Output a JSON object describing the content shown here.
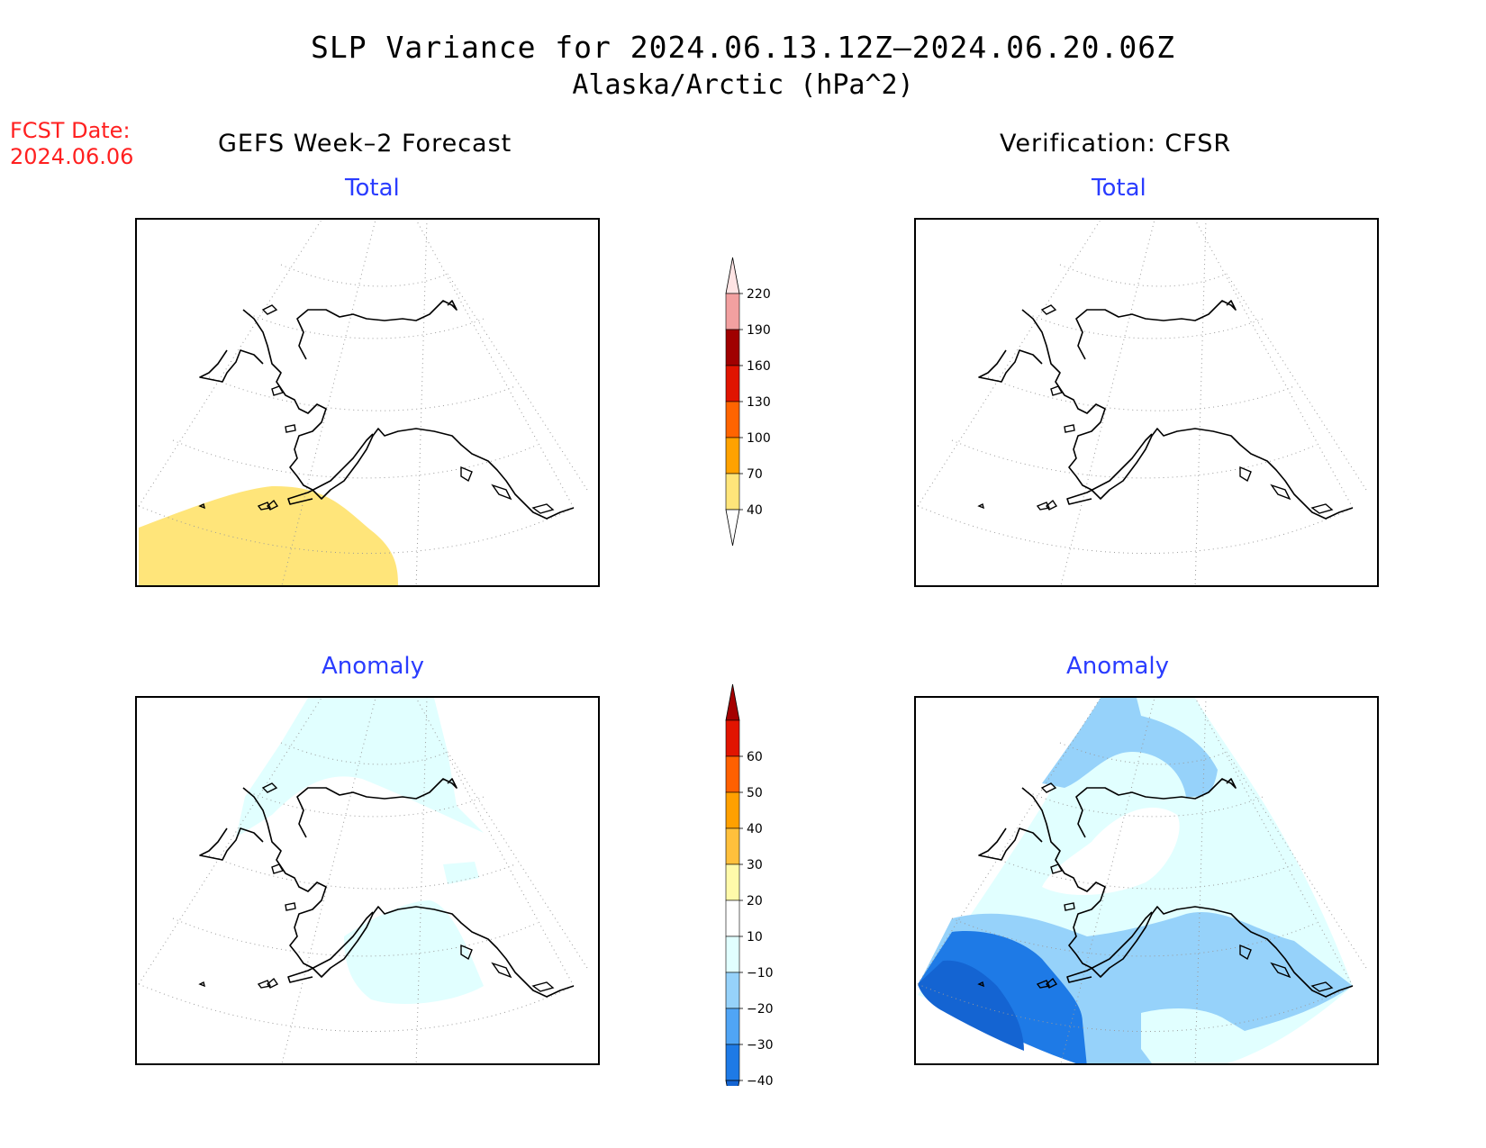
{
  "title": "SLP Variance for 2024.06.13.12Z–2024.06.20.06Z",
  "subtitle": "Alaska/Arctic (hPa^2)",
  "fcst_date": {
    "label": "FCST Date:",
    "value": "2024.06.06"
  },
  "columns": {
    "left": "GEFS Week–2 Forecast",
    "right": "Verification: CFSR"
  },
  "panels": {
    "fcst_total": "Total",
    "verif_total": "Total",
    "fcst_anom": "Anomaly",
    "verif_anom": "Anomaly"
  },
  "colorbars": {
    "total": {
      "labels": [
        "40",
        "70",
        "100",
        "130",
        "160",
        "190",
        "220"
      ],
      "colors": [
        "#ffe57a",
        "#ffa200",
        "#ff6400",
        "#e01400",
        "#a00000",
        "#f2a0a0",
        "#ffe4e4"
      ]
    },
    "anomaly": {
      "labels": [
        "−40",
        "−30",
        "−20",
        "−10",
        "10",
        "20",
        "30",
        "40",
        "50",
        "60"
      ],
      "colors": [
        "#1464d2",
        "#1e7ae6",
        "#50a5f5",
        "#96d2fa",
        "#e1ffff",
        "#ffffff",
        "#fffaaa",
        "#ffc03c",
        "#ffa000",
        "#ff6000",
        "#e11400",
        "#a50000"
      ]
    }
  }
}
